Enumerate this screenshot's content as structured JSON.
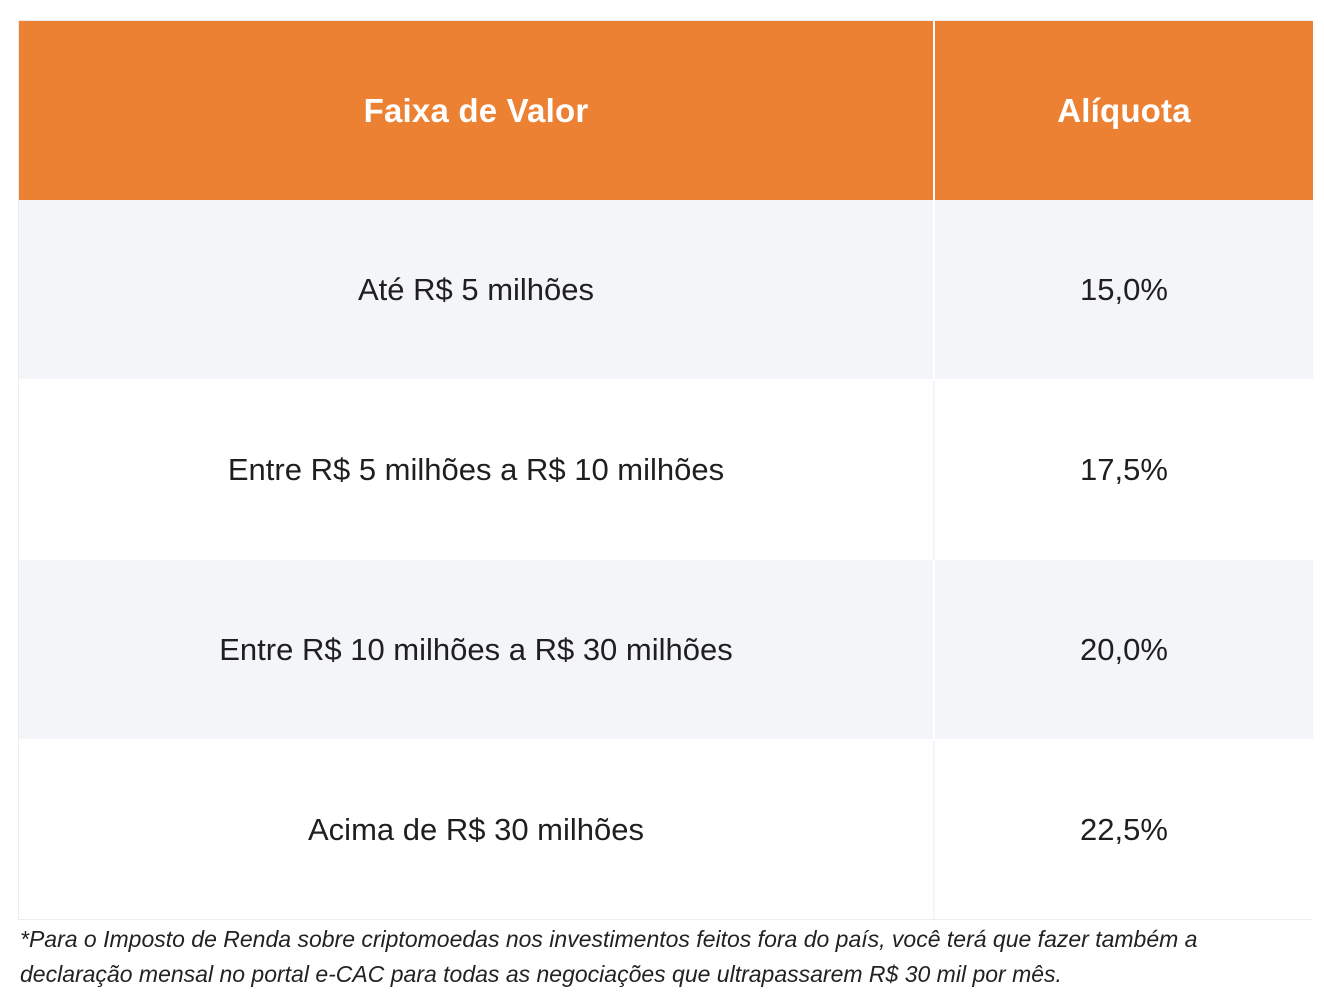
{
  "table": {
    "headers": {
      "range": "Faixa de Valor",
      "rate": "Alíquota"
    },
    "rows": [
      {
        "range": "Até R$ 5 milhões",
        "rate": "15,0%"
      },
      {
        "range": "Entre R$ 5 milhões a R$ 10 milhões",
        "rate": "17,5%"
      },
      {
        "range": "Entre R$ 10 milhões a R$ 30 milhões",
        "rate": "20,0%"
      },
      {
        "range": "Acima de R$ 30 milhões",
        "rate": "22,5%"
      }
    ]
  },
  "footnote": "*Para o Imposto de Renda sobre criptomoedas nos investimentos feitos fora do país, você terá que fazer também a declaração mensal no portal e-CAC para todas as negociações que ultrapassarem R$ 30 mil por mês.",
  "colors": {
    "header_bg": "#ed8133",
    "header_text": "#ffffff",
    "striped_row_bg": "#f4f5f9"
  }
}
